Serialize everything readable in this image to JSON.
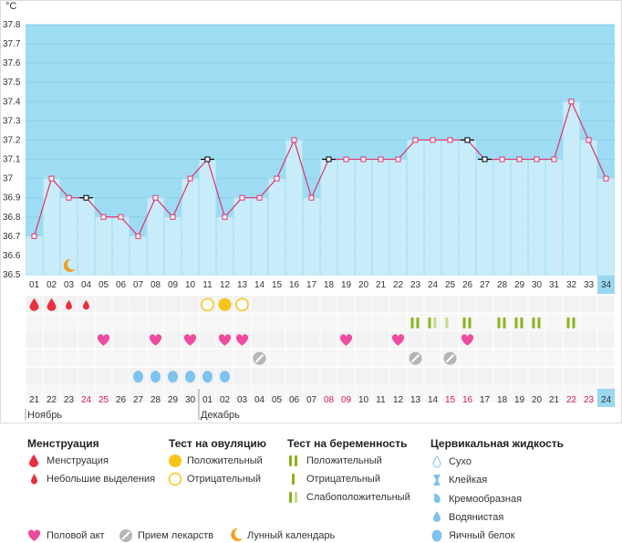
{
  "chart_data": {
    "type": "line",
    "unit_label": "°C",
    "ylim": [
      36.5,
      37.8
    ],
    "yticks": [
      "37.8",
      "37.7",
      "37.6",
      "37.5",
      "37.4",
      "37.3",
      "37.2",
      "37.1",
      "37",
      "36.9",
      "36.8",
      "36.7",
      "36.6",
      "36.5"
    ],
    "cycle_days": [
      "01",
      "02",
      "03",
      "04",
      "05",
      "06",
      "07",
      "08",
      "09",
      "10",
      "11",
      "12",
      "13",
      "14",
      "15",
      "16",
      "17",
      "18",
      "19",
      "20",
      "21",
      "22",
      "23",
      "24",
      "25",
      "26",
      "27",
      "28",
      "29",
      "30",
      "31",
      "32",
      "33",
      "34"
    ],
    "current_day": "34",
    "temperatures": [
      36.7,
      37.0,
      36.9,
      36.9,
      36.8,
      36.8,
      36.7,
      36.9,
      36.8,
      37.0,
      37.1,
      36.8,
      36.9,
      36.9,
      37.0,
      37.2,
      36.9,
      37.1,
      37.1,
      37.1,
      37.1,
      37.1,
      37.2,
      37.2,
      37.2,
      37.2,
      37.1,
      37.1,
      37.1,
      37.1,
      37.1,
      37.4,
      37.2,
      37.0
    ],
    "marked_days": [
      "04",
      "11",
      "18",
      "26",
      "27"
    ],
    "calendar_dates": [
      "21",
      "22",
      "23",
      "24",
      "25",
      "26",
      "27",
      "28",
      "29",
      "30",
      "01",
      "02",
      "03",
      "04",
      "05",
      "06",
      "07",
      "08",
      "09",
      "10",
      "11",
      "12",
      "13",
      "14",
      "15",
      "16",
      "17",
      "18",
      "19",
      "20",
      "21",
      "22",
      "23",
      "24"
    ],
    "weekend_dates": [
      3,
      4,
      17,
      18,
      24,
      25,
      31,
      32
    ],
    "months": [
      {
        "label": "Ноябрь",
        "start_day": "01"
      },
      {
        "label": "Декабрь",
        "start_day": "11"
      }
    ],
    "symptom_rows": {
      "menstruation": {
        "heavy": [
          "01",
          "02"
        ],
        "light": [
          "03",
          "04"
        ]
      },
      "ovulation_test": {
        "positive": [
          "12"
        ],
        "negative": [
          "11",
          "13"
        ]
      },
      "pregnancy_test": {
        "positive": [
          "23",
          "26",
          "28",
          "29",
          "30",
          "32"
        ],
        "negative": [
          "25"
        ],
        "faint": [
          "24"
        ]
      },
      "intercourse": [
        "05",
        "08",
        "10",
        "12",
        "13",
        "19",
        "22",
        "26"
      ],
      "medication": [
        "14",
        "23",
        "25"
      ],
      "moon": [
        "03"
      ],
      "cervical_fluid": {
        "egg_white": [
          "07",
          "08",
          "09",
          "10",
          "11",
          "12"
        ]
      }
    }
  },
  "legend": {
    "menstruation": {
      "title": "Менструация",
      "items": [
        "Менструация",
        "Небольшие выделения"
      ]
    },
    "ovulation": {
      "title": "Тест на овуляцию",
      "items": [
        "Положительный",
        "Отрицательный"
      ]
    },
    "pregnancy": {
      "title": "Тест на беременность",
      "items": [
        "Положительный",
        "Отрицательный",
        "Слабоположительный"
      ]
    },
    "cervical": {
      "title": "Цервикальная жидкость",
      "items": [
        "Сухо",
        "Клейкая",
        "Кремообразная",
        "Водянистая",
        "Яичный белок"
      ]
    },
    "bottom": [
      "Половой акт",
      "Прием лекарств",
      "Лунный календарь"
    ]
  },
  "colors": {
    "sky": "#9ddcf2",
    "bar": "#c8ecf9",
    "line": "#e0326e",
    "menstruation": "#e8303e",
    "ovulation": "#f5c518",
    "pregnancy": "#8ab31e",
    "pregnancy_faint": "#c7dc8a",
    "heart": "#ee4aa0",
    "pill": "#b5b5b5",
    "moon": "#f0a020",
    "drop": "#7ec2ee",
    "current": "#9ad7f0",
    "weekend": "#d81b60"
  }
}
